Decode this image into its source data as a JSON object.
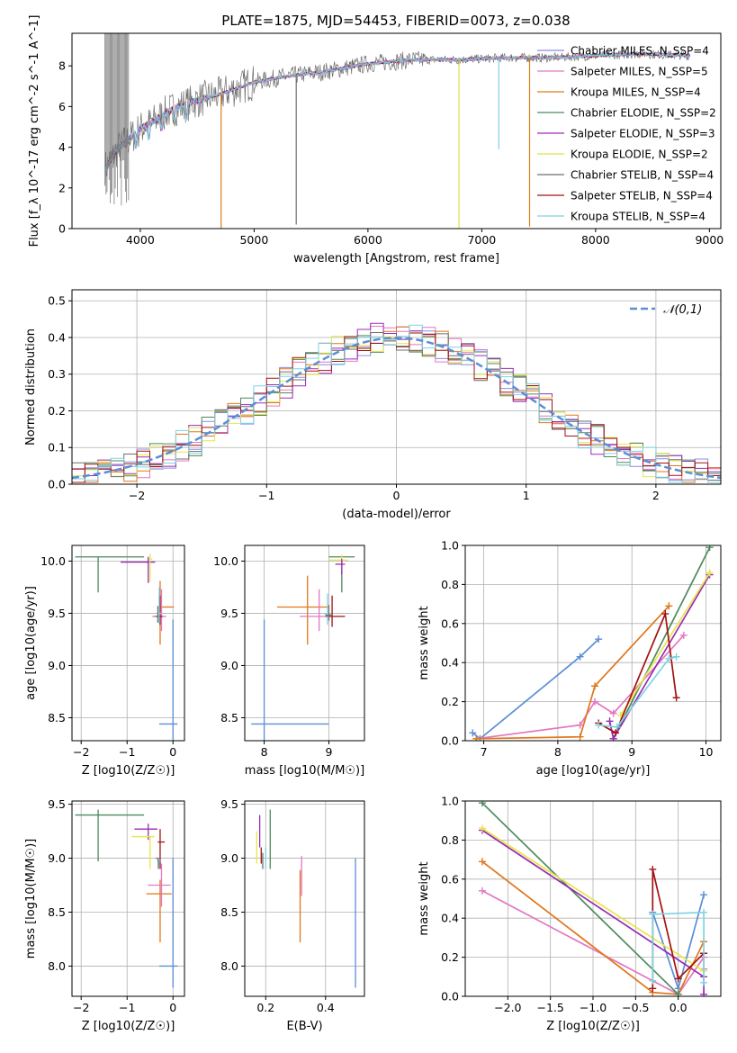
{
  "figure_title": "PLATE=1875, MJD=54453, FIBERID=0073, z=0.038",
  "colors": {
    "Chabrier MILES": "#8c8ce0",
    "Salpeter MILES": "#e377c2",
    "Kroupa MILES": "#d97f1a",
    "Chabrier ELODIE": "#4c8a5c",
    "Salpeter ELODIE": "#9b2bb5",
    "Kroupa ELODIE": "#e0e04a",
    "Chabrier STELIB": "#6f6f6f",
    "Salpeter STELIB": "#a31212",
    "Kroupa STELIB": "#7fd3e0",
    "normal_curve": "#5b8ed6",
    "blue_model": "#5b8ed6",
    "pink_model": "#e377c2",
    "orange_model": "#e0761a",
    "green_model": "#4c8a5c",
    "purple_model": "#9b2bb5",
    "yellow_model": "#e6e64a",
    "darkred_model": "#a31212",
    "cyan_model": "#7fd3e0"
  },
  "chart_data": [
    {
      "id": "spectrum",
      "type": "line",
      "title": "PLATE=1875, MJD=54453, FIBERID=0073, z=0.038",
      "xlabel": "wavelength [Angstrom, rest frame]",
      "ylabel": "Flux [f_λ 10^-17 erg cm^-2 s^-1 A^-1]",
      "xlim": [
        3400,
        9100
      ],
      "ylim": [
        0,
        9.6
      ],
      "xticks": [
        4000,
        5000,
        6000,
        7000,
        8000,
        9000
      ],
      "yticks": [
        0,
        2,
        4,
        6,
        8
      ],
      "legend_position": "top-right",
      "legend": [
        {
          "label": "Chabrier MILES, N_SSP=4",
          "color": "#8c8ce0"
        },
        {
          "label": "Salpeter MILES, N_SSP=5",
          "color": "#e377c2"
        },
        {
          "label": "Kroupa MILES, N_SSP=4",
          "color": "#d97f1a"
        },
        {
          "label": "Chabrier ELODIE, N_SSP=2",
          "color": "#4c8a5c"
        },
        {
          "label": "Salpeter ELODIE, N_SSP=3",
          "color": "#9b2bb5"
        },
        {
          "label": "Kroupa ELODIE, N_SSP=2",
          "color": "#e0e04a"
        },
        {
          "label": "Chabrier STELIB, N_SSP=4",
          "color": "#6f6f6f"
        },
        {
          "label": "Salpeter STELIB, N_SSP=4",
          "color": "#a31212"
        },
        {
          "label": "Kroupa STELIB, N_SSP=4",
          "color": "#7fd3e0"
        }
      ],
      "continuum": {
        "x": [
          3700,
          3800,
          3900,
          4000,
          4100,
          4200,
          4300,
          4500,
          4700,
          5000,
          5300,
          5600,
          6000,
          6400,
          6800,
          7200,
          7600,
          8000,
          8400,
          8800
        ],
        "y": [
          3.0,
          3.9,
          4.4,
          4.9,
          5.2,
          5.6,
          5.9,
          6.3,
          6.6,
          7.2,
          7.5,
          7.7,
          8.1,
          8.3,
          8.3,
          8.4,
          8.4,
          8.5,
          8.6,
          8.5
        ]
      },
      "spikes": [
        {
          "x": 4710,
          "y": 0,
          "color": "#d97f1a"
        },
        {
          "x": 5370,
          "y": 0.2,
          "color": "#6f6f6f"
        },
        {
          "x": 6800,
          "y": 0,
          "color": "#e0e04a"
        },
        {
          "x": 7150,
          "y": 3.9,
          "color": "#7fd3e0"
        },
        {
          "x": 7420,
          "y": 0.1,
          "color": "#d97f1a"
        }
      ]
    },
    {
      "id": "residual_hist",
      "type": "area",
      "xlabel": "(data-model)/error",
      "ylabel": "Normed distribution",
      "xlim": [
        -2.5,
        2.5
      ],
      "ylim": [
        0,
        0.53
      ],
      "xticks": [
        -2,
        -1,
        0,
        1,
        2
      ],
      "yticks": [
        0.0,
        0.1,
        0.2,
        0.3,
        0.4,
        0.5
      ],
      "grid": true,
      "legend_position": "top-right",
      "legend": [
        {
          "label": "𝒩(0,1)",
          "color": "#5b8ed6",
          "style": "dashed"
        }
      ],
      "normal_curve": {
        "mean": 0,
        "sigma": 1
      },
      "bin_width": 0.1,
      "bins_start": -2.5
    },
    {
      "id": "age_vs_Z",
      "type": "scatter",
      "xlabel": "Z [log10(Z/Z☉)]",
      "ylabel": "age [log10(age/yr)]",
      "xlim": [
        -2.2,
        0.25
      ],
      "ylim": [
        8.28,
        10.15
      ],
      "xticks": [
        -2,
        -1,
        0
      ],
      "yticks": [
        8.5,
        9.0,
        9.5,
        10.0
      ],
      "grid": true,
      "points": [
        {
          "x": 0.0,
          "y": 8.44,
          "xerr": [
            0.3,
            0.1
          ],
          "yerr": [
            0.44,
            1.0
          ],
          "color": "#5b8ed6"
        },
        {
          "x": -1.63,
          "y": 10.04,
          "xerr": [
            0.5,
            1.0
          ],
          "yerr": [
            0.34,
            0.0
          ],
          "color": "#4c8a5c"
        },
        {
          "x": -0.54,
          "y": 9.99,
          "xerr": [
            0.6,
            0.15
          ],
          "yerr": [
            0.2,
            0.05
          ],
          "color": "#9b2bb5"
        },
        {
          "x": -0.5,
          "y": 10.02,
          "xerr": [
            0.0,
            0.05
          ],
          "yerr": [
            0.22,
            0.05
          ],
          "color": "#e6e64a"
        },
        {
          "x": -0.28,
          "y": 9.56,
          "xerr": [
            0.0,
            0.3
          ],
          "yerr": [
            0.36,
            0.25
          ],
          "color": "#e0761a"
        },
        {
          "x": -0.25,
          "y": 9.47,
          "xerr": [
            0.2,
            0.1
          ],
          "yerr": [
            0.14,
            0.26
          ],
          "color": "#e377c2"
        },
        {
          "x": -0.28,
          "y": 9.47,
          "xerr": [
            0.08,
            0.05
          ],
          "yerr": [
            0.08,
            0.2
          ],
          "color": "#a31212"
        },
        {
          "x": -0.3,
          "y": 9.5,
          "xerr": [
            0.05,
            0.05
          ],
          "yerr": [
            0.1,
            0.25
          ],
          "color": "#7fd3e0"
        },
        {
          "x": -0.33,
          "y": 9.47,
          "xerr": [
            0.06,
            0.0
          ],
          "yerr": [
            0.06,
            0.1
          ],
          "color": "#6f6f6f"
        }
      ]
    },
    {
      "id": "age_vs_mass",
      "type": "scatter",
      "xlabel": "mass [log10(M/M☉)]",
      "ylabel": "",
      "xlim": [
        7.7,
        9.55
      ],
      "ylim": [
        8.28,
        10.15
      ],
      "xticks": [
        8,
        9
      ],
      "yticks": [
        8.5,
        9.0,
        9.5,
        10.0
      ],
      "grid": true,
      "points": [
        {
          "x": 8.0,
          "y": 8.44,
          "xerr": [
            0.2,
            1.0
          ],
          "yerr": [
            0.44,
            1.0
          ],
          "color": "#5b8ed6"
        },
        {
          "x": 8.67,
          "y": 9.56,
          "xerr": [
            0.47,
            0.33
          ],
          "yerr": [
            0.36,
            0.3
          ],
          "color": "#e0761a"
        },
        {
          "x": 8.85,
          "y": 9.47,
          "xerr": [
            0.3,
            0.1
          ],
          "yerr": [
            0.14,
            0.26
          ],
          "color": "#e377c2"
        },
        {
          "x": 9.05,
          "y": 9.47,
          "xerr": [
            0.1,
            0.2
          ],
          "yerr": [
            0.1,
            0.2
          ],
          "color": "#a31212"
        },
        {
          "x": 9.2,
          "y": 10.04,
          "xerr": [
            0.2,
            0.2
          ],
          "yerr": [
            0.34,
            0.0
          ],
          "color": "#4c8a5c"
        },
        {
          "x": 9.2,
          "y": 10.01,
          "xerr": [
            0.2,
            0.1
          ],
          "yerr": [
            0.1,
            0.05
          ],
          "color": "#e6e64a"
        },
        {
          "x": 9.2,
          "y": 9.97,
          "xerr": [
            0.1,
            0.05
          ],
          "yerr": [
            0.1,
            0.05
          ],
          "color": "#9b2bb5"
        },
        {
          "x": 8.98,
          "y": 9.49,
          "xerr": [
            0.05,
            0.05
          ],
          "yerr": [
            0.1,
            0.2
          ],
          "color": "#7fd3e0"
        },
        {
          "x": 9.0,
          "y": 9.48,
          "xerr": [
            0.05,
            0.05
          ],
          "yerr": [
            0.05,
            0.1
          ],
          "color": "#6f6f6f"
        }
      ]
    },
    {
      "id": "massweight_vs_age",
      "type": "line",
      "xlabel": "age [log10(age/yr)]",
      "ylabel": "mass weight",
      "xlim": [
        6.75,
        10.2
      ],
      "ylim": [
        0,
        1.0
      ],
      "xticks": [
        7,
        8,
        9,
        10
      ],
      "yticks": [
        0.0,
        0.2,
        0.4,
        0.6,
        0.8,
        1.0
      ],
      "grid": true,
      "series": [
        {
          "color": "#5b8ed6",
          "x": [
            6.85,
            6.95,
            8.3,
            8.55
          ],
          "y": [
            0.04,
            0.01,
            0.43,
            0.52
          ]
        },
        {
          "color": "#e377c2",
          "x": [
            6.9,
            8.3,
            8.5,
            8.75,
            9.7
          ],
          "y": [
            0.01,
            0.08,
            0.2,
            0.14,
            0.54
          ]
        },
        {
          "color": "#e0761a",
          "x": [
            6.9,
            8.3,
            8.5,
            9.5
          ],
          "y": [
            0.01,
            0.02,
            0.28,
            0.69
          ]
        },
        {
          "color": "#4c8a5c",
          "x": [
            8.75,
            10.05
          ],
          "y": [
            0.01,
            0.99
          ]
        },
        {
          "color": "#9b2bb5",
          "x": [
            8.7,
            8.75,
            10.05
          ],
          "y": [
            0.1,
            0.01,
            0.85
          ]
        },
        {
          "color": "#e6e64a",
          "x": [
            8.85,
            10.05
          ],
          "y": [
            0.13,
            0.86
          ]
        },
        {
          "color": "#a31212",
          "x": [
            8.55,
            8.78,
            9.45,
            9.6
          ],
          "y": [
            0.09,
            0.04,
            0.65,
            0.22
          ]
        },
        {
          "color": "#7fd3e0",
          "x": [
            8.55,
            8.8,
            9.5,
            9.6
          ],
          "y": [
            0.08,
            0.07,
            0.42,
            0.43
          ]
        }
      ]
    },
    {
      "id": "mass_vs_Z",
      "type": "scatter",
      "xlabel": "Z [log10(Z/Z☉)]",
      "ylabel": "mass [log10(M/M☉)]",
      "xlim": [
        -2.2,
        0.25
      ],
      "ylim": [
        7.72,
        9.53
      ],
      "xticks": [
        -2,
        -1,
        0
      ],
      "yticks": [
        8.0,
        8.5,
        9.0,
        9.5
      ],
      "grid": true,
      "points": [
        {
          "x": 0.0,
          "y": 8.0,
          "xerr": [
            0.3,
            0.1
          ],
          "yerr": [
            0.2,
            1.0
          ],
          "color": "#5b8ed6"
        },
        {
          "x": -1.63,
          "y": 9.4,
          "xerr": [
            0.5,
            1.0
          ],
          "yerr": [
            0.43,
            0.05
          ],
          "color": "#4c8a5c"
        },
        {
          "x": -0.54,
          "y": 9.27,
          "xerr": [
            0.3,
            0.2
          ],
          "yerr": [
            0.1,
            0.05
          ],
          "color": "#9b2bb5"
        },
        {
          "x": -0.5,
          "y": 9.2,
          "xerr": [
            0.4,
            0.1
          ],
          "yerr": [
            0.3,
            0.0
          ],
          "color": "#e6e64a"
        },
        {
          "x": -0.28,
          "y": 8.67,
          "xerr": [
            0.3,
            0.25
          ],
          "yerr": [
            0.45,
            0.13
          ],
          "color": "#e0761a"
        },
        {
          "x": -0.25,
          "y": 8.75,
          "xerr": [
            0.3,
            0.2
          ],
          "yerr": [
            0.2,
            0.2
          ],
          "color": "#e377c2"
        },
        {
          "x": -0.28,
          "y": 9.15,
          "xerr": [
            0.05,
            0.1
          ],
          "yerr": [
            0.25,
            0.12
          ],
          "color": "#a31212"
        },
        {
          "x": -0.3,
          "y": 8.98,
          "xerr": [
            0.05,
            0.05
          ],
          "yerr": [
            0.05,
            0.0
          ],
          "color": "#7fd3e0"
        },
        {
          "x": -0.32,
          "y": 9.0,
          "xerr": [
            0.05,
            0.0
          ],
          "yerr": [
            0.1,
            0.0
          ],
          "color": "#6f6f6f"
        }
      ]
    },
    {
      "id": "mass_vs_EBV",
      "type": "scatter",
      "xlabel": "E(B-V)",
      "ylabel": "",
      "xlim": [
        0.13,
        0.53
      ],
      "ylim": [
        7.72,
        9.53
      ],
      "xticks": [
        0.2,
        0.4
      ],
      "yticks": [
        8.0,
        8.5,
        9.0,
        9.5
      ],
      "grid": true,
      "points": [
        {
          "x": 0.5,
          "y": 8.0,
          "xerr": [
            0,
            0
          ],
          "yerr": [
            0.2,
            1.0
          ],
          "color": "#5b8ed6"
        },
        {
          "x": 0.315,
          "y": 8.67,
          "xerr": [
            0,
            0
          ],
          "yerr": [
            0.45,
            0.22
          ],
          "color": "#e0761a"
        },
        {
          "x": 0.32,
          "y": 8.75,
          "xerr": [
            0,
            0
          ],
          "yerr": [
            0.1,
            0.27
          ],
          "color": "#e377c2"
        },
        {
          "x": 0.215,
          "y": 9.2,
          "xerr": [
            0,
            0
          ],
          "yerr": [
            0.3,
            0.25
          ],
          "color": "#4c8a5c"
        },
        {
          "x": 0.18,
          "y": 9.3,
          "xerr": [
            0,
            0
          ],
          "yerr": [
            0.2,
            0.1
          ],
          "color": "#9b2bb5"
        },
        {
          "x": 0.17,
          "y": 9.15,
          "xerr": [
            0,
            0
          ],
          "yerr": [
            0.2,
            0.1
          ],
          "color": "#e6e64a"
        },
        {
          "x": 0.19,
          "y": 9.05,
          "xerr": [
            0,
            0
          ],
          "yerr": [
            0.15,
            0.0
          ],
          "color": "#6f6f6f"
        },
        {
          "x": 0.2,
          "y": 9.0,
          "xerr": [
            0,
            0
          ],
          "yerr": [
            0.1,
            0.1
          ],
          "color": "#7fd3e0"
        },
        {
          "x": 0.185,
          "y": 9.1,
          "xerr": [
            0,
            0
          ],
          "yerr": [
            0.15,
            0.0
          ],
          "color": "#a31212"
        }
      ]
    },
    {
      "id": "massweight_vs_Z",
      "type": "line",
      "xlabel": "Z [log10(Z/Z☉)]",
      "ylabel": "mass weight",
      "xlim": [
        -2.5,
        0.5
      ],
      "ylim": [
        0,
        1.0
      ],
      "xticks": [
        -2.0,
        -1.5,
        -1.0,
        -0.5,
        0.0
      ],
      "yticks": [
        0.0,
        0.2,
        0.4,
        0.6,
        0.8,
        1.0
      ],
      "grid": true,
      "series": [
        {
          "color": "#5b8ed6",
          "x": [
            -0.3,
            0.0,
            0.3
          ],
          "y": [
            0.43,
            0.04,
            0.52
          ]
        },
        {
          "color": "#e377c2",
          "x": [
            -2.3,
            0.0,
            0.3,
            0.3
          ],
          "y": [
            0.54,
            0.01,
            0.2,
            0.14
          ]
        },
        {
          "color": "#e0761a",
          "x": [
            -2.3,
            -0.3,
            0.0,
            0.3
          ],
          "y": [
            0.69,
            0.02,
            0.01,
            0.28
          ]
        },
        {
          "color": "#4c8a5c",
          "x": [
            -2.3,
            0.0
          ],
          "y": [
            0.99,
            0.01
          ]
        },
        {
          "color": "#9b2bb5",
          "x": [
            -2.3,
            0.3,
            0.3
          ],
          "y": [
            0.85,
            0.1,
            0.01
          ]
        },
        {
          "color": "#e6e64a",
          "x": [
            -2.3,
            0.3
          ],
          "y": [
            0.86,
            0.13
          ]
        },
        {
          "color": "#a31212",
          "x": [
            -0.3,
            -0.3,
            0.0,
            0.3
          ],
          "y": [
            0.04,
            0.65,
            0.09,
            0.22
          ]
        },
        {
          "color": "#7fd3e0",
          "x": [
            -0.3,
            -0.3,
            0.3,
            0.3
          ],
          "y": [
            0.08,
            0.42,
            0.43,
            0.07
          ]
        }
      ]
    }
  ]
}
